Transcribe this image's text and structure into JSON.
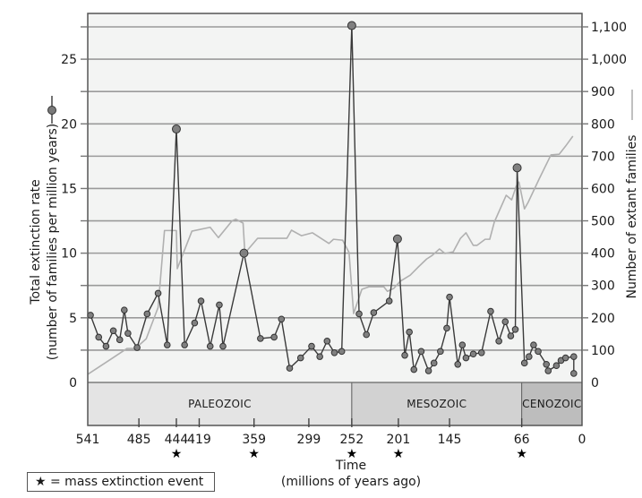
{
  "chart_data": {
    "type": "line",
    "title": "",
    "xlabel": "Time (millions of years ago)",
    "xlabel_line1": "Time",
    "xlabel_line2": "(millions of years ago)",
    "ylabel_left_line1": "Total extinction rate",
    "ylabel_left_line2": "(number of families per million years)",
    "ylabel_right": "Number of extant families",
    "x_reversed": true,
    "xlim": [
      541,
      0
    ],
    "ylim_left": [
      0,
      27.5
    ],
    "ylim_right": [
      0,
      1100
    ],
    "x_ticks": [
      541,
      485,
      444,
      419,
      359,
      299,
      252,
      201,
      145,
      66,
      0
    ],
    "x_tick_labels": [
      "541",
      "485",
      "444",
      "419",
      "359",
      "299",
      "252",
      "201",
      "145",
      "66",
      "0"
    ],
    "mass_extinction_ticks": [
      444,
      359,
      252,
      201,
      66
    ],
    "y_left_ticks": [
      0,
      5,
      10,
      15,
      20,
      25
    ],
    "y_left_tick_labels": [
      "0",
      "5",
      "10",
      "15",
      "20",
      "25"
    ],
    "y_right_ticks": [
      0,
      100,
      200,
      300,
      400,
      500,
      600,
      700,
      800,
      900,
      1000,
      1100
    ],
    "y_right_tick_labels": [
      "0",
      "100",
      "200",
      "300",
      "400",
      "500",
      "600",
      "700",
      "800",
      "900",
      "1,000",
      "1,100"
    ],
    "grid": true,
    "grid_step_left": 2.5,
    "eras": [
      {
        "name": "PALEOZOIC",
        "start": 541,
        "end": 252,
        "color": "#e4e4e4"
      },
      {
        "name": "MESOZOIC",
        "start": 252,
        "end": 66,
        "color": "#d2d2d2"
      },
      {
        "name": "CENOZOIC",
        "start": 66,
        "end": 0,
        "color": "#bdbdbd"
      }
    ],
    "legend_note": "★ = mass extinction event",
    "series": [
      {
        "name": "Total extinction rate",
        "axis": "left",
        "color": "#3a3a3a",
        "marker": "circle",
        "x": [
          538,
          529,
          521,
          513,
          506,
          501,
          497,
          487,
          476,
          464,
          454,
          444,
          435,
          424,
          417,
          407,
          397,
          393,
          370,
          352,
          337,
          329,
          320,
          308,
          296,
          287,
          279,
          271,
          263,
          252,
          244,
          236,
          228,
          211,
          202,
          194,
          189,
          184,
          176,
          168,
          162,
          155,
          148,
          145,
          136,
          131,
          127,
          119,
          110,
          100,
          91,
          84,
          78,
          73,
          71,
          63,
          58,
          53,
          48,
          39,
          37,
          28,
          23,
          18,
          9,
          9
        ],
        "values": [
          5.2,
          3.5,
          2.8,
          4.0,
          3.3,
          5.6,
          3.8,
          2.7,
          5.3,
          6.9,
          2.9,
          19.6,
          2.9,
          4.6,
          6.3,
          2.8,
          6.0,
          2.8,
          10.0,
          3.4,
          3.5,
          4.9,
          1.1,
          1.9,
          2.8,
          2.0,
          3.2,
          2.3,
          2.4,
          27.6,
          5.3,
          3.7,
          5.4,
          6.3,
          11.1,
          2.1,
          3.9,
          1.0,
          2.4,
          0.9,
          1.5,
          2.4,
          4.2,
          6.6,
          1.4,
          2.9,
          1.9,
          2.2,
          2.3,
          5.5,
          3.2,
          4.7,
          3.6,
          4.1,
          16.6,
          1.5,
          2.0,
          2.9,
          2.4,
          1.4,
          0.9,
          1.3,
          1.7,
          1.9,
          2.0,
          0.7
        ],
        "highlight_x": [
          444,
          370,
          252,
          202,
          71
        ]
      },
      {
        "name": "Number of extant families",
        "axis": "right",
        "color": "#b0b0b0",
        "marker": "none",
        "x": [
          541,
          498,
          489,
          477,
          464,
          457,
          444,
          443,
          427,
          407,
          398,
          383,
          379,
          371,
          369,
          355,
          323,
          318,
          307,
          295,
          277,
          272,
          262,
          255,
          250,
          241,
          233,
          217,
          213,
          206,
          199,
          188,
          180,
          170,
          164,
          156,
          150,
          141,
          133,
          127,
          119,
          115,
          106,
          101,
          96,
          83,
          77,
          72,
          69,
          63,
          59,
          47,
          34,
          25,
          18,
          10
        ],
        "values": [
          25,
          105,
          105,
          135,
          232,
          470,
          470,
          352,
          468,
          480,
          448,
          500,
          505,
          493,
          400,
          446,
          446,
          471,
          454,
          463,
          430,
          443,
          440,
          402,
          213,
          288,
          296,
          296,
          282,
          291,
          313,
          332,
          355,
          382,
          393,
          413,
          399,
          404,
          446,
          463,
          424,
          424,
          443,
          443,
          496,
          579,
          565,
          607,
          620,
          537,
          557,
          629,
          704,
          706,
          731,
          762
        ]
      }
    ]
  }
}
